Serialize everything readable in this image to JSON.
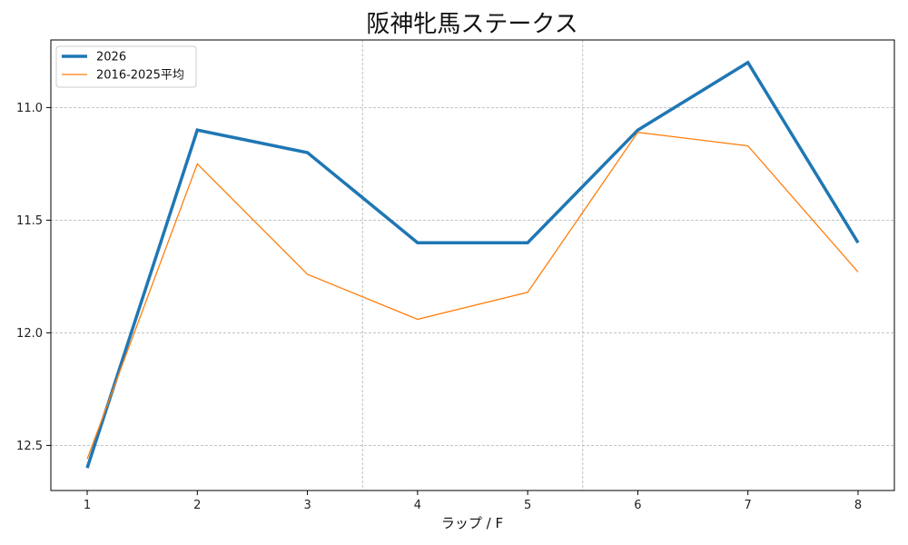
{
  "chart_data": {
    "type": "line",
    "title": "阪神牝馬ステークス",
    "xlabel": "ラップ / F",
    "ylabel": "",
    "y_inverted": true,
    "ylim": [
      12.7,
      10.7
    ],
    "xlim": [
      0.67,
      8.33
    ],
    "x": [
      1,
      2,
      3,
      4,
      5,
      6,
      7,
      8
    ],
    "x_ticks": [
      "1",
      "2",
      "3",
      "4",
      "5",
      "6",
      "7",
      "8"
    ],
    "y_ticks": [
      "11.0",
      "11.5",
      "12.0",
      "12.5"
    ],
    "y_tick_values": [
      11.0,
      11.5,
      12.0,
      12.5
    ],
    "grid": true,
    "legend_position": "top-left",
    "series": [
      {
        "name": "2026",
        "values": [
          12.6,
          11.1,
          11.2,
          11.6,
          11.6,
          11.1,
          10.8,
          11.6
        ],
        "color": "#1f77b4",
        "style": "thick"
      },
      {
        "name": "2016-2025平均",
        "values": [
          12.56,
          11.25,
          11.74,
          11.94,
          11.82,
          11.11,
          11.17,
          11.73
        ],
        "color": "#ff7f0e",
        "style": "thin"
      }
    ]
  }
}
